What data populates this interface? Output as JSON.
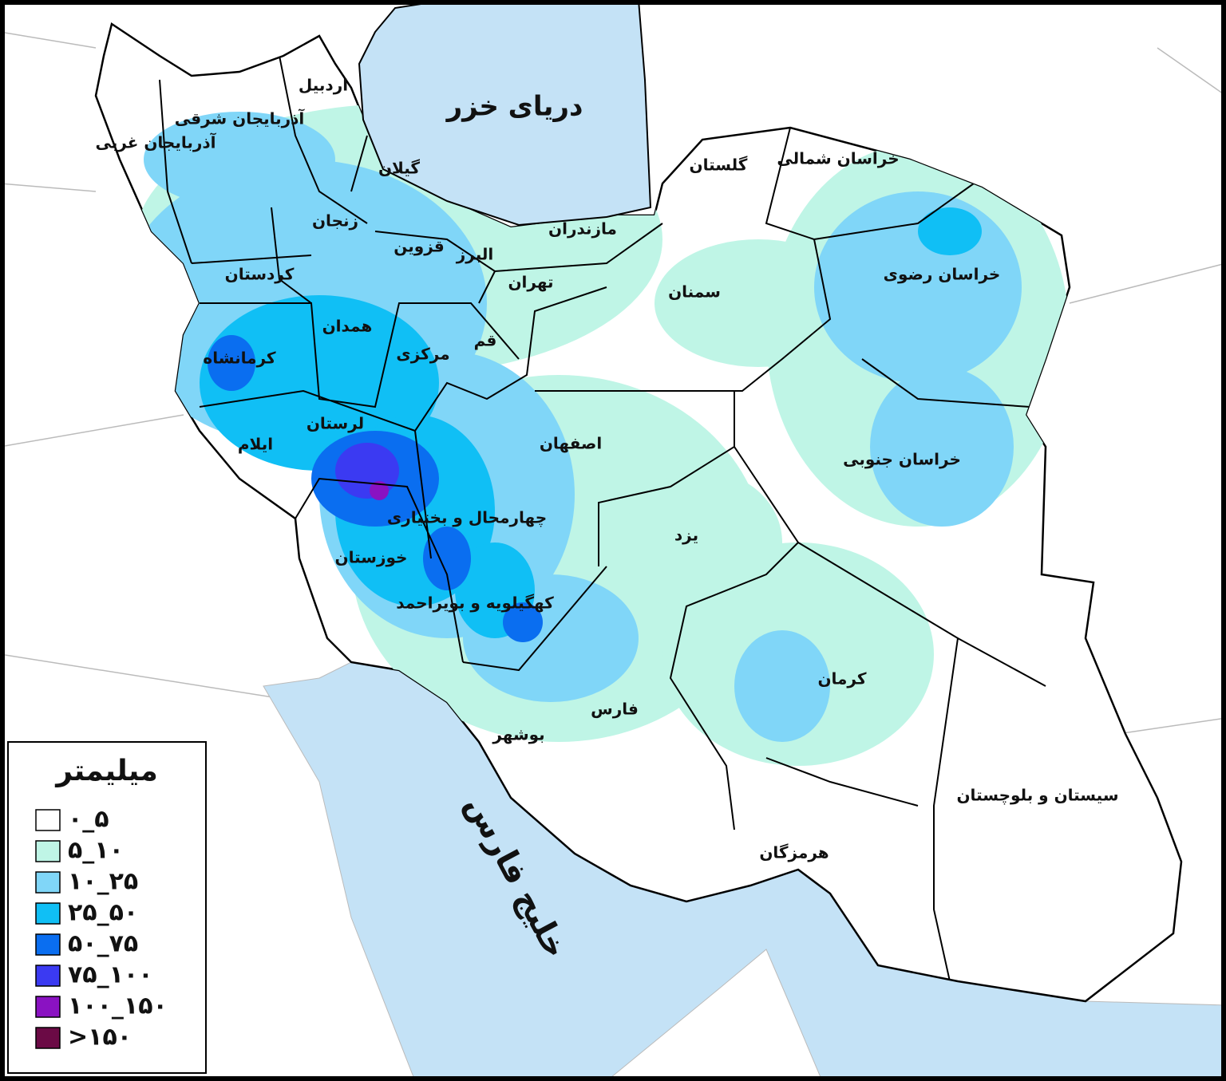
{
  "map": {
    "seas": [
      "دریای  خزر",
      "خلیج فارس"
    ],
    "provinces": [
      "اردبیل",
      "آذربایجان شرقی",
      "آذربایجان غربی",
      "گیلان",
      "زنجان",
      "قزوین",
      "البرز",
      "مازندران",
      "گلستان",
      "خراسان شمالی",
      "خراسان رضوی",
      "تهران",
      "سمنان",
      "کردستان",
      "همدان",
      "کرمانشاه",
      "قم",
      "مرکزی",
      "لرستان",
      "ایلام",
      "اصفهان",
      "خراسان جنوبی",
      "چهارمحال و بختیاری",
      "یزد",
      "خوزستان",
      "کهگیلویه و بویراحمد",
      "کرمان",
      "فارس",
      "بوشهر",
      "سیستان و بلوچستان",
      "هرمزگان"
    ],
    "legend": {
      "title": "میلیمتر",
      "items": [
        {
          "label": "۰_۵",
          "color": "#ffffff"
        },
        {
          "label": "۵_۱۰",
          "color": "#bff5e6"
        },
        {
          "label": "۱۰_۲۵",
          "color": "#80d6f8"
        },
        {
          "label": "۲۵_۵۰",
          "color": "#10bff5"
        },
        {
          "label": "۵۰_۷۵",
          "color": "#0a6ef0"
        },
        {
          "label": "۷۵_۱۰۰",
          "color": "#3b3af2"
        },
        {
          "label": "۱۰۰_۱۵۰",
          "color": "#8a12c2"
        },
        {
          "label": ">۱۵۰",
          "color": "#6b0a45"
        }
      ]
    }
  }
}
